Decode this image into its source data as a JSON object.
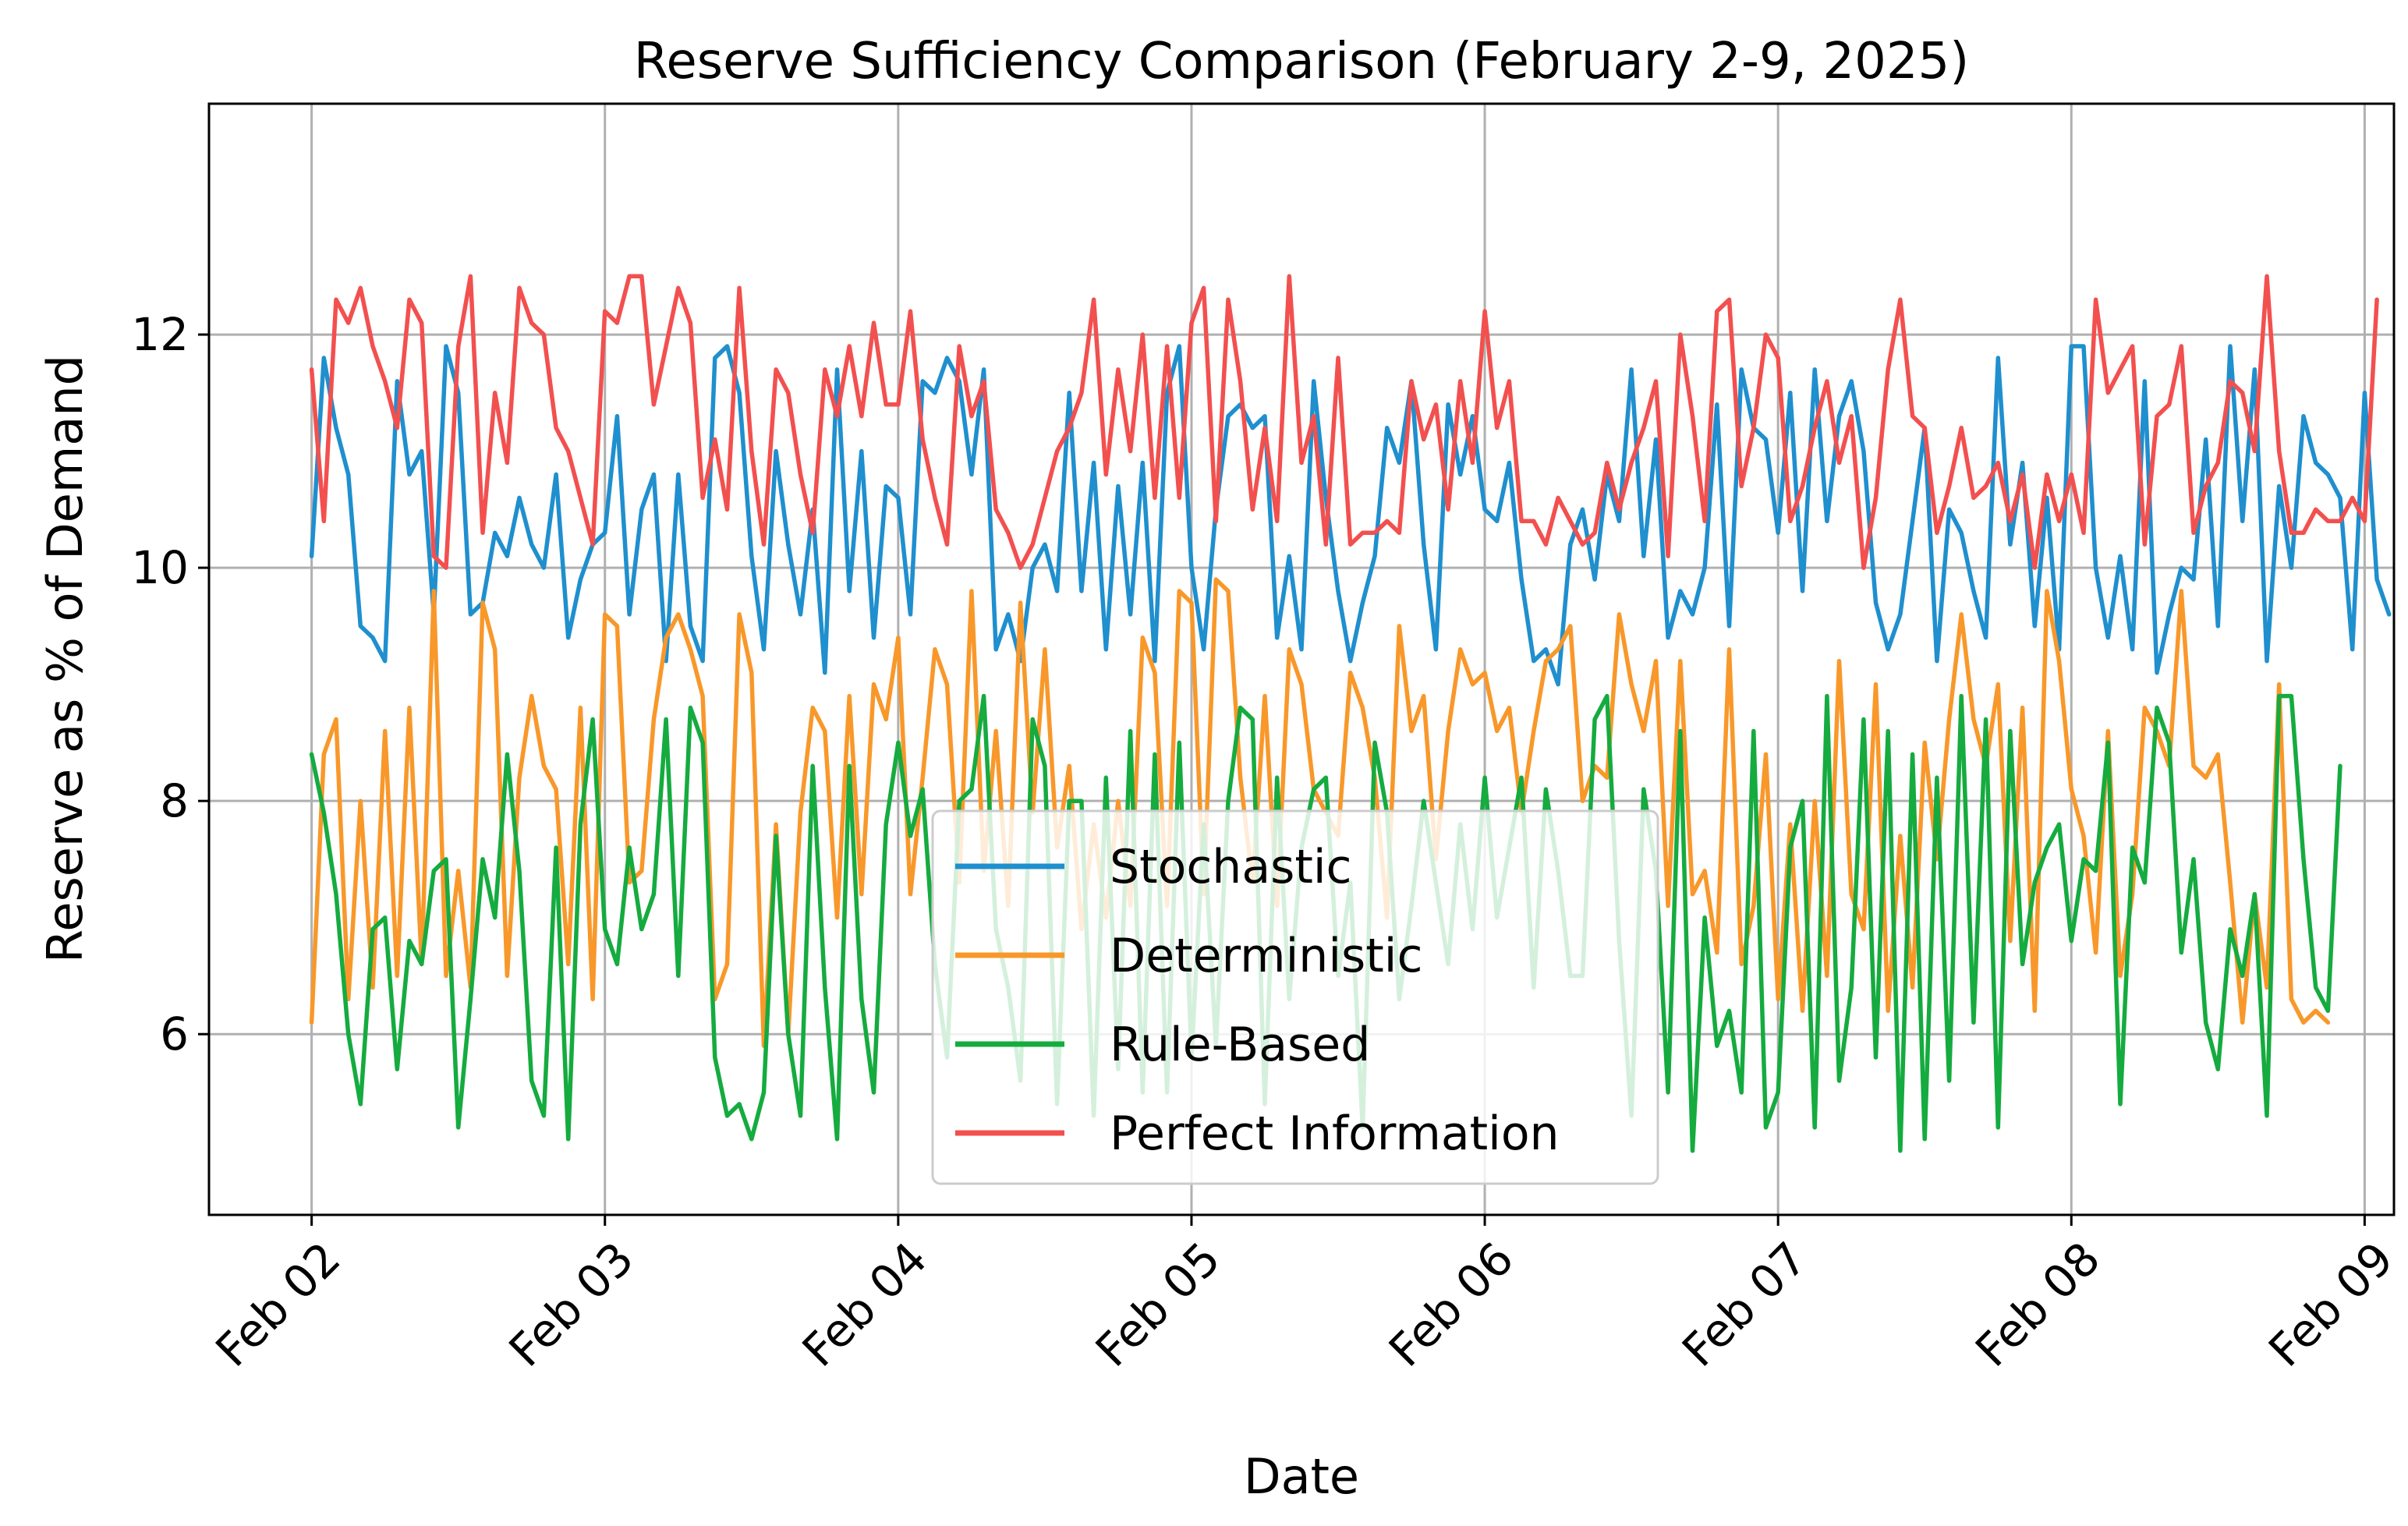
{
  "chart_data": {
    "type": "line",
    "title": "Reserve Sufficiency Comparison (February 2-9, 2025)",
    "xlabel": "Date",
    "ylabel": "Reserve as % of Demand",
    "x_ticks": [
      "Feb 02",
      "Feb 03",
      "Feb 04",
      "Feb 05",
      "Feb 06",
      "Feb 07",
      "Feb 08",
      "Feb 09"
    ],
    "x_range_days": [
      -0.35,
      7.1
    ],
    "y_ticks": [
      6,
      8,
      10,
      12
    ],
    "ylim": [
      4.45,
      13.98
    ],
    "grid": true,
    "legend_position": "lower center",
    "sample_step_hours": 1,
    "series": [
      {
        "name": "Stochastic",
        "color": "#1f8fce",
        "values": [
          10.1,
          11.8,
          11.2,
          10.8,
          9.5,
          9.4,
          9.2,
          11.6,
          10.8,
          11.0,
          9.6,
          11.9,
          11.5,
          9.6,
          9.7,
          10.3,
          10.1,
          10.6,
          10.2,
          10.0,
          10.8,
          9.4,
          9.9,
          10.2,
          10.3,
          11.3,
          9.6,
          10.5,
          10.8,
          9.2,
          10.8,
          9.5,
          9.2,
          11.8,
          11.9,
          11.5,
          10.1,
          9.3,
          11.0,
          10.2,
          9.6,
          10.5,
          9.1,
          11.7,
          9.8,
          11.0,
          9.4,
          10.7,
          10.6,
          9.6,
          11.6,
          11.5,
          11.8,
          11.6,
          10.8,
          11.7,
          9.3,
          9.6,
          9.2,
          10.0,
          10.2,
          9.8,
          11.5,
          9.8,
          10.9,
          9.3,
          10.7,
          9.6,
          10.9,
          9.2,
          11.5,
          11.9,
          10.0,
          9.3,
          10.5,
          11.3,
          11.4,
          11.2,
          11.3,
          9.4,
          10.1,
          9.3,
          11.6,
          10.6,
          9.8,
          9.2,
          9.7,
          10.1,
          11.2,
          10.9,
          11.6,
          10.2,
          9.3,
          11.4,
          10.8,
          11.3,
          10.5,
          10.4,
          10.9,
          9.9,
          9.2,
          9.3,
          9.0,
          10.2,
          10.5,
          9.9,
          10.8,
          10.4,
          11.7,
          10.1,
          11.1,
          9.4,
          9.8,
          9.6,
          10.0,
          11.4,
          9.5,
          11.7,
          11.2,
          11.1,
          10.3,
          11.5,
          9.8,
          11.7,
          10.4,
          11.3,
          11.6,
          11.0,
          9.7,
          9.3,
          9.6,
          10.4,
          11.2,
          9.2,
          10.5,
          10.3,
          9.8,
          9.4,
          11.8,
          10.2,
          10.9,
          9.5,
          10.6,
          9.3,
          11.9,
          11.9,
          10.0,
          9.4,
          10.1,
          9.3,
          11.6,
          9.1,
          9.6,
          10.0,
          9.9,
          11.1,
          9.5,
          11.9,
          10.4,
          11.7,
          9.2,
          10.7,
          10.0,
          11.3,
          10.9,
          10.8,
          10.6,
          9.3,
          11.5,
          9.9,
          9.6
        ]
      },
      {
        "name": "Deterministic",
        "color": "#f8982a",
        "values": [
          6.1,
          8.4,
          8.7,
          6.3,
          8.0,
          6.4,
          8.6,
          6.5,
          8.8,
          6.6,
          9.8,
          6.5,
          7.4,
          6.4,
          9.7,
          9.3,
          6.5,
          8.2,
          8.9,
          8.3,
          8.1,
          6.6,
          8.8,
          6.3,
          9.6,
          9.5,
          7.3,
          7.4,
          8.7,
          9.4,
          9.6,
          9.3,
          8.9,
          6.3,
          6.6,
          9.6,
          9.1,
          5.9,
          7.8,
          6.0,
          7.9,
          8.8,
          8.6,
          7.0,
          8.9,
          7.2,
          9.0,
          8.7,
          9.4,
          7.2,
          8.2,
          9.3,
          9.0,
          7.3,
          9.8,
          7.4,
          8.6,
          7.1,
          9.7,
          7.9,
          9.3,
          7.6,
          8.3,
          6.9,
          7.8,
          7.0,
          8.0,
          7.1,
          9.4,
          9.1,
          7.1,
          9.8,
          9.7,
          7.2,
          9.9,
          9.8,
          8.2,
          7.3,
          8.9,
          7.1,
          9.3,
          9.0,
          8.1,
          7.9,
          7.7,
          9.1,
          8.8,
          8.2,
          7.0,
          9.5,
          8.6,
          8.9,
          7.5,
          8.6,
          9.3,
          9.0,
          9.1,
          8.6,
          8.8,
          7.9,
          8.6,
          9.2,
          9.3,
          9.5,
          8.0,
          8.3,
          8.2,
          9.6,
          9.0,
          8.6,
          9.2,
          7.1,
          9.2,
          7.2,
          7.4,
          6.7,
          9.3,
          6.6,
          7.1,
          8.4,
          6.3,
          7.8,
          6.2,
          8.0,
          6.5,
          9.2,
          7.2,
          6.9,
          9.0,
          6.2,
          7.7,
          6.4,
          8.5,
          7.5,
          8.7,
          9.6,
          8.7,
          8.3,
          9.0,
          6.8,
          8.8,
          6.2,
          9.8,
          9.2,
          8.1,
          7.7,
          6.7,
          8.6,
          6.5,
          7.2,
          8.8,
          8.6,
          8.3,
          9.8,
          8.3,
          8.2,
          8.4,
          7.3,
          6.1,
          7.2,
          6.4,
          9.0,
          6.3,
          6.1,
          6.2,
          6.1
        ]
      },
      {
        "name": "Rule-Based",
        "color": "#15ab3f",
        "values": [
          8.4,
          7.9,
          7.2,
          6.0,
          5.4,
          6.9,
          7.0,
          5.7,
          6.8,
          6.6,
          7.4,
          7.5,
          5.2,
          6.3,
          7.5,
          7.0,
          8.4,
          7.4,
          5.6,
          5.3,
          7.6,
          5.1,
          7.8,
          8.7,
          6.9,
          6.6,
          7.6,
          6.9,
          7.2,
          8.7,
          6.5,
          8.8,
          8.5,
          5.8,
          5.3,
          5.4,
          5.1,
          5.5,
          7.7,
          6.0,
          5.3,
          8.3,
          6.4,
          5.1,
          8.3,
          6.3,
          5.5,
          7.8,
          8.5,
          7.7,
          8.1,
          6.6,
          5.8,
          8.0,
          8.1,
          8.9,
          6.9,
          6.4,
          5.6,
          8.7,
          8.3,
          5.4,
          8.0,
          8.0,
          5.3,
          8.2,
          5.7,
          8.6,
          5.5,
          8.4,
          5.5,
          8.5,
          5.8,
          7.8,
          5.9,
          8.0,
          8.8,
          8.7,
          5.4,
          8.2,
          6.3,
          7.6,
          8.1,
          8.2,
          6.5,
          7.3,
          5.2,
          8.5,
          7.9,
          6.3,
          7.1,
          8.0,
          7.3,
          6.6,
          7.8,
          6.9,
          8.2,
          7.0,
          7.6,
          8.2,
          6.4,
          8.1,
          7.4,
          6.5,
          6.5,
          8.7,
          8.9,
          6.8,
          5.3,
          8.1,
          7.4,
          5.5,
          8.6,
          5.0,
          7.0,
          5.9,
          6.2,
          5.5,
          8.6,
          5.2,
          5.5,
          7.6,
          8.0,
          5.2,
          8.9,
          5.6,
          6.4,
          8.7,
          5.8,
          8.6,
          5.0,
          8.4,
          5.1,
          8.2,
          5.6,
          8.9,
          6.1,
          8.7,
          5.2,
          8.6,
          6.6,
          7.3,
          7.6,
          7.8,
          6.8,
          7.5,
          7.4,
          8.5,
          5.4,
          7.6,
          7.3,
          8.8,
          8.5,
          6.7,
          7.5,
          6.1,
          5.7,
          6.9,
          6.5,
          7.2,
          5.3,
          8.9,
          8.9,
          7.5,
          6.4,
          6.2,
          8.3
        ]
      },
      {
        "name": "Perfect Information",
        "color": "#f2504f",
        "values": [
          11.7,
          10.4,
          12.3,
          12.1,
          12.4,
          11.9,
          11.6,
          11.2,
          12.3,
          12.1,
          10.1,
          10.0,
          11.9,
          12.5,
          10.3,
          11.5,
          10.9,
          12.4,
          12.1,
          12.0,
          11.2,
          11.0,
          10.6,
          10.2,
          12.2,
          12.1,
          12.5,
          12.5,
          11.4,
          11.9,
          12.4,
          12.1,
          10.6,
          11.1,
          10.5,
          12.4,
          11.0,
          10.2,
          11.7,
          11.5,
          10.8,
          10.3,
          11.7,
          11.3,
          11.9,
          11.3,
          12.1,
          11.4,
          11.4,
          12.2,
          11.1,
          10.6,
          10.2,
          11.9,
          11.3,
          11.6,
          10.5,
          10.3,
          10.0,
          10.2,
          10.6,
          11.0,
          11.2,
          11.5,
          12.3,
          10.8,
          11.7,
          11.0,
          12.0,
          10.6,
          11.9,
          10.6,
          12.1,
          12.4,
          10.4,
          12.3,
          11.6,
          10.5,
          11.2,
          10.4,
          12.5,
          10.9,
          11.3,
          10.2,
          11.8,
          10.2,
          10.3,
          10.3,
          10.4,
          10.3,
          11.6,
          11.1,
          11.4,
          10.5,
          11.6,
          10.9,
          12.2,
          11.2,
          11.6,
          10.4,
          10.4,
          10.2,
          10.6,
          10.4,
          10.2,
          10.3,
          10.9,
          10.5,
          10.9,
          11.2,
          11.6,
          10.1,
          12.0,
          11.3,
          10.4,
          12.2,
          12.3,
          10.7,
          11.2,
          12.0,
          11.8,
          10.4,
          10.7,
          11.2,
          11.6,
          10.9,
          11.3,
          10.0,
          10.6,
          11.7,
          12.3,
          11.3,
          11.2,
          10.3,
          10.7,
          11.2,
          10.6,
          10.7,
          10.9,
          10.4,
          10.8,
          10.0,
          10.8,
          10.4,
          10.8,
          10.3,
          12.3,
          11.5,
          11.7,
          11.9,
          10.2,
          11.3,
          11.4,
          11.9,
          10.3,
          10.7,
          10.9,
          11.6,
          11.5,
          11.0,
          12.5,
          11.0,
          10.3,
          10.3,
          10.5,
          10.4,
          10.4,
          10.6,
          10.4,
          12.3
        ]
      }
    ]
  }
}
